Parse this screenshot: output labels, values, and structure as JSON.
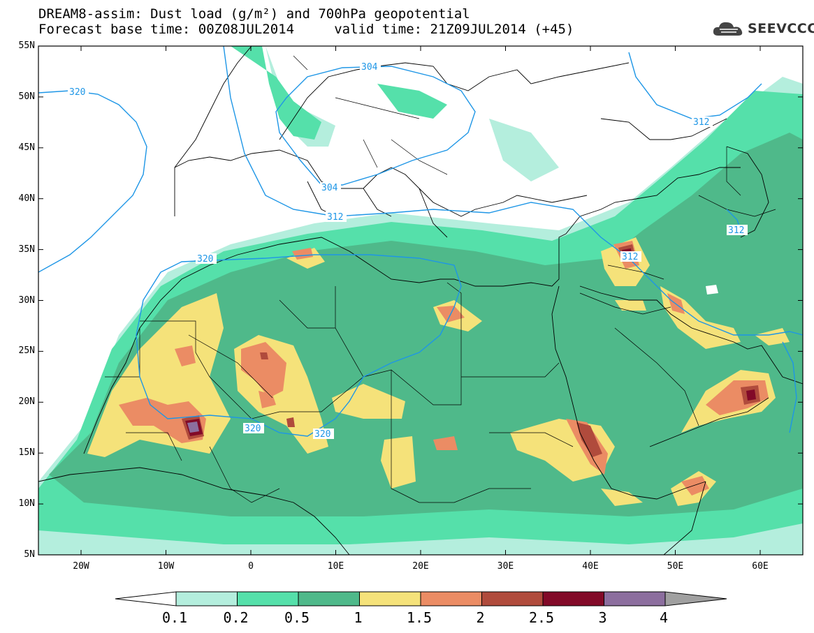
{
  "title_line1": "DREAM8-assim: Dust load (g/m²) and 700hPa geopotential",
  "title_line2": "Forecast base time: 00Z08JUL2014     valid time: 21Z09JUL2014 (+45)",
  "logo_text": "SEEVCCC",
  "lat_ticks": [
    "55N",
    "50N",
    "45N",
    "40N",
    "35N",
    "30N",
    "25N",
    "20N",
    "15N",
    "10N",
    "5N"
  ],
  "lon_ticks": [
    "20W",
    "10W",
    "0",
    "10E",
    "20E",
    "30E",
    "40E",
    "50E",
    "60E"
  ],
  "contour_labels": [
    "320",
    "304",
    "304",
    "312",
    "320",
    "312",
    "312",
    "320",
    "320",
    "312"
  ],
  "colorbar": {
    "labels": [
      "0.1",
      "0.2",
      "0.5",
      "1",
      "1.5",
      "2",
      "2.5",
      "3",
      "4"
    ],
    "colors": [
      "#b4eedd",
      "#55e0aa",
      "#4fb98a",
      "#f5e27a",
      "#eb8c64",
      "#b04b3c",
      "#820a28",
      "#8c6e9e"
    ],
    "under_color": "#ffffff",
    "over_color": "#a0a0a0"
  },
  "colors": {
    "coast": "#000000",
    "contour": "#1e96e6"
  }
}
